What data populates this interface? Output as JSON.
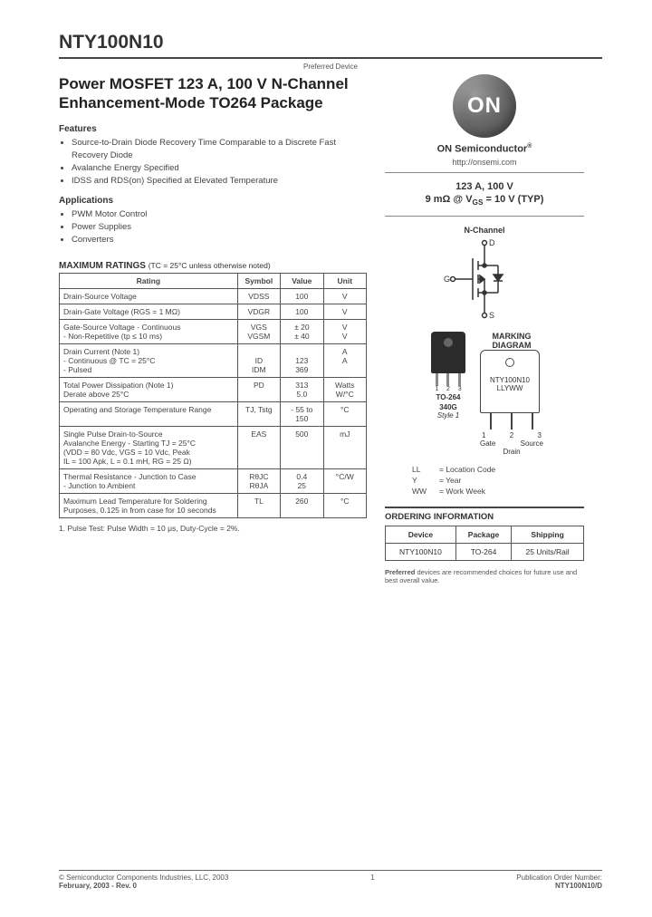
{
  "partNumber": "NTY100N10",
  "preferred": "Preferred Device",
  "title": "Power MOSFET 123 A, 100 V N-Channel Enhancement-Mode TO264 Package",
  "features": {
    "heading": "Features",
    "items": [
      "Source-to-Drain Diode Recovery Time Comparable to a Discrete Fast Recovery Diode",
      "Avalanche Energy Specified",
      "IDSS and RDS(on) Specified at Elevated Temperature"
    ]
  },
  "applications": {
    "heading": "Applications",
    "items": [
      "PWM Motor Control",
      "Power Supplies",
      "Converters"
    ]
  },
  "ratings": {
    "title": "MAXIMUM RATINGS",
    "condition": "(TC = 25°C unless otherwise noted)",
    "headers": {
      "rating": "Rating",
      "symbol": "Symbol",
      "value": "Value",
      "unit": "Unit"
    },
    "rows": [
      {
        "rating": "Drain-Source Voltage",
        "symbol": "VDSS",
        "value": "100",
        "unit": "V"
      },
      {
        "rating": "Drain-Gate Voltage (RGS = 1 MΩ)",
        "symbol": "VDGR",
        "value": "100",
        "unit": "V"
      },
      {
        "rating": "Gate-Source Voltage          - Continuous\n          - Non-Repetitive (tp ≤ 10 ms)",
        "symbol": "VGS\nVGSM",
        "value": "± 20\n± 40",
        "unit": "V\nV"
      },
      {
        "rating": "Drain Current (Note 1)\n          - Continuous @ TC = 25°C\n          - Pulsed",
        "symbol": "\nID\nIDM",
        "value": "\n123\n369",
        "unit": "A\nA"
      },
      {
        "rating": "Total Power Dissipation (Note 1)\nDerate above 25°C",
        "symbol": "PD",
        "value": "313\n5.0",
        "unit": "Watts\nW/°C"
      },
      {
        "rating": "Operating and Storage Temperature Range",
        "symbol": "TJ, Tstg",
        "value": "- 55 to\n150",
        "unit": "°C"
      },
      {
        "rating": "Single Pulse Drain-to-Source\nAvalanche Energy - Starting TJ = 25°C\n(VDD = 80 Vdc, VGS = 10 Vdc, Peak\nIL = 100 Apk, L = 0.1 mH, RG = 25 Ω)",
        "symbol": "EAS",
        "value": "500",
        "unit": "mJ"
      },
      {
        "rating": "Thermal Resistance     - Junction to Case\n                                - Junction to Ambient",
        "symbol": "RθJC\nRθJA",
        "value": "0.4\n25",
        "unit": "°C/W"
      },
      {
        "rating": "Maximum Lead Temperature for Soldering Purposes, 0.125 in from case for 10 seconds",
        "symbol": "TL",
        "value": "260",
        "unit": "°C"
      }
    ],
    "footnote": "1.  Pulse Test: Pulse Width = 10 μs, Duty-Cycle = 2%."
  },
  "brand": {
    "logoText": "ON",
    "name": "ON Semiconductor",
    "url": "http://onsemi.com"
  },
  "specBox": {
    "line1": "123 A, 100 V",
    "line2": "9 mΩ @ VGS = 10 V (TYP)"
  },
  "channelLabel": "N-Channel",
  "symbolPins": {
    "d": "D",
    "g": "G",
    "s": "S"
  },
  "marking": {
    "heading": "MARKING DIAGRAM",
    "pkgName": "TO-264",
    "pkgCode": "340G",
    "style": "Style 1",
    "topMark1": "NTY100N10",
    "topMark2": "LLYWW",
    "pins": {
      "n1": "1",
      "n2": "2",
      "n3": "3",
      "gate": "Gate",
      "drain": "Drain",
      "source": "Source"
    }
  },
  "legend": [
    {
      "k": "LL",
      "v": "= Location Code"
    },
    {
      "k": "Y",
      "v": "= Year"
    },
    {
      "k": "WW",
      "v": "= Work Week"
    }
  ],
  "ordering": {
    "heading": "ORDERING INFORMATION",
    "headers": {
      "device": "Device",
      "package": "Package",
      "shipping": "Shipping"
    },
    "row": {
      "device": "NTY100N10",
      "package": "TO-264",
      "shipping": "25 Units/Rail"
    }
  },
  "prefNote": "Preferred devices are recommended choices for future use and best overall value.",
  "footer": {
    "copyright": "© Semiconductor Components Industries, LLC, 2003",
    "date": "February, 2003 - Rev. 0",
    "page": "1",
    "pubLabel": "Publication Order Number:",
    "pubNum": "NTY100N10/D"
  }
}
